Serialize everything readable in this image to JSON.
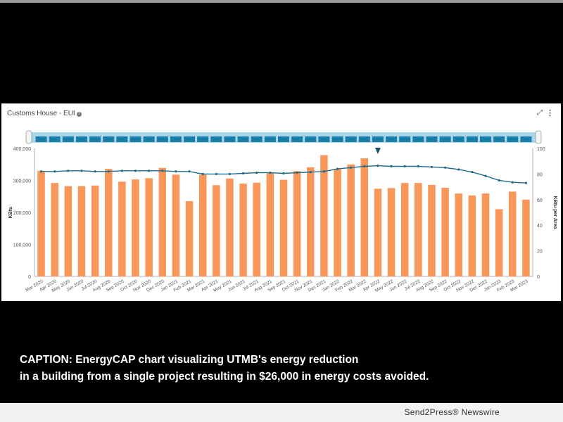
{
  "panel": {
    "title": "Customs House - EUI",
    "info_icon": "info-icon",
    "expand_icon": "expand-icon",
    "menu_icon": "kebab-icon"
  },
  "caption": {
    "line1": "CAPTION: EnergyCAP chart visualizing UTMB's energy reduction",
    "line2": "in a building from a single project resulting in $26,000 in energy costs avoided."
  },
  "credit": "Send2Press® Newswire",
  "colors": {
    "bar": "#f9975a",
    "line": "#1e6b8c",
    "navigator_bg": "#a9d6e8",
    "navigator_bar": "#1a7fa8"
  },
  "chart_data": {
    "type": "bar",
    "categories": [
      "Mar 2020",
      "Apr 2020",
      "May 2020",
      "Jun 2020",
      "Jul 2020",
      "Aug 2020",
      "Sep 2020",
      "Oct 2020",
      "Nov 2020",
      "Dec 2020",
      "Jan 2021",
      "Feb 2021",
      "Mar 2021",
      "Apr 2021",
      "May 2021",
      "Jun 2021",
      "Jul 2021",
      "Aug 2021",
      "Sep 2021",
      "Oct 2021",
      "Nov 2021",
      "Dec 2021",
      "Jan 2022",
      "Feb 2022",
      "Mar 2022",
      "Apr 2022",
      "May 2022",
      "Jun 2022",
      "Jul 2022",
      "Aug 2022",
      "Sep 2022",
      "Oct 2022",
      "Nov 2022",
      "Dec 2022",
      "Jan 2023",
      "Feb 2023",
      "Mar 2023"
    ],
    "series": [
      {
        "name": "KBtu",
        "type": "bar",
        "axis": "left",
        "values": [
          330000,
          292000,
          282000,
          282000,
          284000,
          336000,
          296000,
          303000,
          307000,
          339000,
          318000,
          235000,
          318000,
          285000,
          306000,
          290000,
          293000,
          322000,
          302000,
          329000,
          341000,
          379000,
          335000,
          350000,
          369000,
          274000,
          276000,
          292000,
          292000,
          286000,
          277000,
          259000,
          253000,
          259000,
          210000,
          265000,
          240000
        ]
      },
      {
        "name": "KBtu per Area",
        "type": "line",
        "axis": "right",
        "values": [
          82,
          82,
          82.5,
          82.5,
          82,
          82,
          82.5,
          82.5,
          82.5,
          82.5,
          82,
          82,
          80,
          80,
          80,
          80.5,
          81,
          81,
          80.5,
          81,
          81.5,
          82,
          84,
          85,
          86,
          86.5,
          86,
          86,
          86,
          85.5,
          85,
          83.5,
          81.5,
          78.5,
          75,
          73.5,
          73
        ]
      }
    ],
    "ylabel_left": "KBtu",
    "ylabel_right": "KBtu per Area",
    "ylim_left": [
      0,
      400000
    ],
    "ylim_right": [
      0,
      100
    ],
    "yticks_left": [
      "0",
      "100,000",
      "200,000",
      "300,000",
      "400,000"
    ],
    "yticks_right": [
      "0",
      "20",
      "40",
      "60",
      "80",
      "100"
    ],
    "marker_at": "Apr 2022",
    "grid": false,
    "navigator": true
  }
}
